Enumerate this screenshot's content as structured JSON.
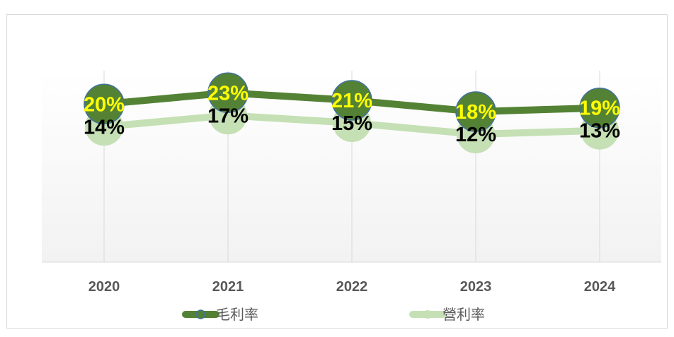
{
  "chart_data": {
    "type": "line",
    "categories": [
      "2020",
      "2021",
      "2022",
      "2023",
      "2024"
    ],
    "series": [
      {
        "name": "毛利率",
        "values": [
          20,
          23,
          21,
          18,
          19
        ],
        "labels": [
          "20%",
          "23%",
          "21%",
          "18%",
          "19%"
        ],
        "color": "#548235",
        "label_color": "#ffff00"
      },
      {
        "name": "營利率",
        "values": [
          14,
          17,
          15,
          12,
          13
        ],
        "labels": [
          "14%",
          "17%",
          "15%",
          "12%",
          "13%"
        ],
        "color": "#c5e0b4",
        "label_color": "#000000"
      }
    ],
    "title": "",
    "xlabel": "",
    "ylabel": "",
    "ylim": [
      0,
      25
    ],
    "grid": "vertical",
    "legend": "bottom"
  }
}
